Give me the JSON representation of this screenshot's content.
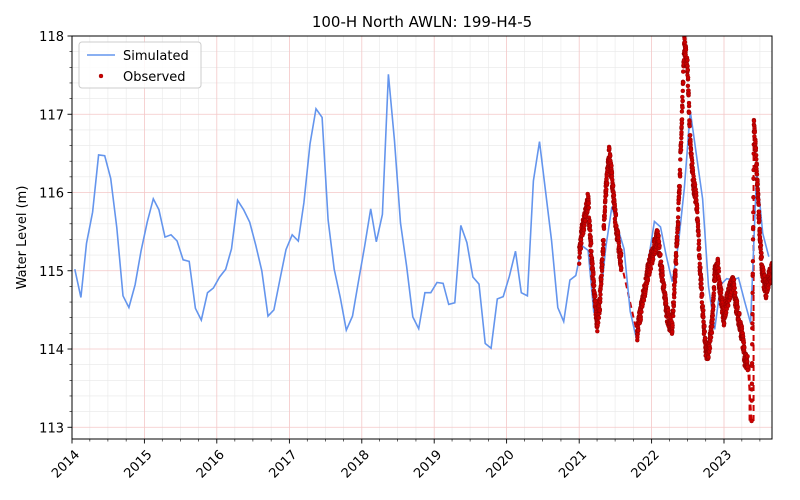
{
  "chart_data": {
    "type": "line",
    "title": "100-H North AWLN: 199-H4-5",
    "xlabel": "",
    "ylabel": "Water Level (m)",
    "xlim": [
      "2014-01-01",
      "2023-08-31"
    ],
    "ylim": [
      112.85,
      118
    ],
    "x_ticks": [
      "2014",
      "2015",
      "2016",
      "2017",
      "2018",
      "2019",
      "2020",
      "2021",
      "2022",
      "2023"
    ],
    "y_ticks": [
      113,
      114,
      115,
      116,
      117,
      118
    ],
    "grid": true,
    "legend_position": "upper left",
    "colors": {
      "simulated": "#6495ed",
      "observed": "#cc0000",
      "observed_edge": "#8b0000"
    },
    "series": [
      {
        "name": "Simulated",
        "kind": "line",
        "points": [
          [
            "2014-01-15",
            115.02
          ],
          [
            "2014-02-15",
            114.66
          ],
          [
            "2014-03-15",
            115.35
          ],
          [
            "2014-04-15",
            115.75
          ],
          [
            "2014-05-15",
            116.48
          ],
          [
            "2014-06-15",
            116.47
          ],
          [
            "2014-07-15",
            116.18
          ],
          [
            "2014-08-15",
            115.55
          ],
          [
            "2014-09-15",
            114.68
          ],
          [
            "2014-10-15",
            114.53
          ],
          [
            "2014-11-15",
            114.82
          ],
          [
            "2014-12-15",
            115.25
          ],
          [
            "2015-01-15",
            115.62
          ],
          [
            "2015-02-15",
            115.92
          ],
          [
            "2015-03-15",
            115.78
          ],
          [
            "2015-04-15",
            115.43
          ],
          [
            "2015-05-15",
            115.46
          ],
          [
            "2015-06-15",
            115.38
          ],
          [
            "2015-07-15",
            115.14
          ],
          [
            "2015-08-15",
            115.12
          ],
          [
            "2015-09-15",
            114.52
          ],
          [
            "2015-10-15",
            114.37
          ],
          [
            "2015-11-15",
            114.72
          ],
          [
            "2015-12-15",
            114.78
          ],
          [
            "2016-01-15",
            114.92
          ],
          [
            "2016-02-15",
            115.02
          ],
          [
            "2016-03-15",
            115.28
          ],
          [
            "2016-04-15",
            115.9
          ],
          [
            "2016-05-15",
            115.78
          ],
          [
            "2016-06-15",
            115.62
          ],
          [
            "2016-07-15",
            115.33
          ],
          [
            "2016-08-15",
            115.0
          ],
          [
            "2016-09-15",
            114.42
          ],
          [
            "2016-10-15",
            114.5
          ],
          [
            "2016-11-15",
            114.9
          ],
          [
            "2016-12-15",
            115.27
          ],
          [
            "2017-01-15",
            115.46
          ],
          [
            "2017-02-15",
            115.38
          ],
          [
            "2017-03-15",
            115.87
          ],
          [
            "2017-04-15",
            116.62
          ],
          [
            "2017-05-15",
            117.07
          ],
          [
            "2017-06-15",
            116.96
          ],
          [
            "2017-07-15",
            115.65
          ],
          [
            "2017-08-15",
            115.02
          ],
          [
            "2017-09-15",
            114.65
          ],
          [
            "2017-10-15",
            114.24
          ],
          [
            "2017-11-15",
            114.42
          ],
          [
            "2017-12-15",
            114.86
          ],
          [
            "2018-01-15",
            115.31
          ],
          [
            "2018-02-15",
            115.79
          ],
          [
            "2018-03-15",
            115.37
          ],
          [
            "2018-04-15",
            115.72
          ],
          [
            "2018-05-15",
            117.51
          ],
          [
            "2018-06-15",
            116.66
          ],
          [
            "2018-07-15",
            115.61
          ],
          [
            "2018-08-15",
            115.06
          ],
          [
            "2018-09-15",
            114.41
          ],
          [
            "2018-10-15",
            114.26
          ],
          [
            "2018-11-15",
            114.72
          ],
          [
            "2018-12-15",
            114.72
          ],
          [
            "2019-01-15",
            114.85
          ],
          [
            "2019-02-15",
            114.84
          ],
          [
            "2019-03-15",
            114.57
          ],
          [
            "2019-04-15",
            114.59
          ],
          [
            "2019-05-15",
            115.58
          ],
          [
            "2019-06-15",
            115.36
          ],
          [
            "2019-07-15",
            114.92
          ],
          [
            "2019-08-15",
            114.83
          ],
          [
            "2019-09-15",
            114.07
          ],
          [
            "2019-10-15",
            114.01
          ],
          [
            "2019-11-15",
            114.64
          ],
          [
            "2019-12-15",
            114.67
          ],
          [
            "2020-01-15",
            114.93
          ],
          [
            "2020-02-15",
            115.25
          ],
          [
            "2020-03-15",
            114.72
          ],
          [
            "2020-04-15",
            114.68
          ],
          [
            "2020-05-15",
            116.15
          ],
          [
            "2020-06-15",
            116.65
          ],
          [
            "2020-07-15",
            116.02
          ],
          [
            "2020-08-15",
            115.38
          ],
          [
            "2020-09-15",
            114.53
          ],
          [
            "2020-10-15",
            114.35
          ],
          [
            "2020-11-15",
            114.88
          ],
          [
            "2020-12-15",
            114.94
          ],
          [
            "2021-01-15",
            115.32
          ],
          [
            "2021-02-15",
            115.26
          ],
          [
            "2021-03-15",
            114.48
          ],
          [
            "2021-04-15",
            114.56
          ],
          [
            "2021-05-15",
            115.3
          ],
          [
            "2021-06-15",
            115.82
          ],
          [
            "2021-07-15",
            115.54
          ],
          [
            "2021-08-15",
            115.28
          ],
          [
            "2021-09-15",
            114.48
          ],
          [
            "2021-10-15",
            114.15
          ],
          [
            "2021-11-15",
            114.57
          ],
          [
            "2021-12-15",
            115.12
          ],
          [
            "2022-01-15",
            115.63
          ],
          [
            "2022-02-15",
            115.56
          ],
          [
            "2022-03-15",
            115.2
          ],
          [
            "2022-04-15",
            114.86
          ],
          [
            "2022-05-15",
            115.32
          ],
          [
            "2022-06-15",
            116.05
          ],
          [
            "2022-07-15",
            117.04
          ],
          [
            "2022-08-15",
            116.48
          ],
          [
            "2022-09-15",
            115.92
          ],
          [
            "2022-10-15",
            114.8
          ],
          [
            "2022-11-15",
            114.25
          ],
          [
            "2022-12-15",
            114.82
          ],
          [
            "2023-01-15",
            114.9
          ],
          [
            "2023-02-15",
            114.88
          ],
          [
            "2023-03-15",
            114.91
          ],
          [
            "2023-04-15",
            114.61
          ],
          [
            "2023-05-15",
            114.33
          ],
          [
            "2023-06-15",
            116.28
          ],
          [
            "2023-07-15",
            115.48
          ],
          [
            "2023-08-15",
            115.18
          ]
        ]
      },
      {
        "name": "Observed",
        "kind": "scatter",
        "segments": [
          {
            "gap_after": true,
            "points": [
              [
                "2021-01-01",
                115.2
              ],
              [
                "2021-01-15",
                115.5
              ],
              [
                "2021-02-01",
                115.7
              ],
              [
                "2021-02-15",
                115.9
              ],
              [
                "2021-03-01",
                115.3
              ],
              [
                "2021-03-15",
                114.8
              ],
              [
                "2021-04-01",
                114.3
              ],
              [
                "2021-04-15",
                114.6
              ],
              [
                "2021-05-01",
                115.3
              ],
              [
                "2021-05-15",
                116.0
              ],
              [
                "2021-06-01",
                116.5
              ],
              [
                "2021-06-15",
                116.2
              ],
              [
                "2021-07-01",
                115.7
              ],
              [
                "2021-07-15",
                115.4
              ],
              [
                "2021-08-01",
                115.1
              ]
            ]
          },
          {
            "gap_after": true,
            "points": [
              [
                "2021-10-20",
                114.2
              ],
              [
                "2021-11-15",
                114.6
              ],
              [
                "2021-12-15",
                115.0
              ],
              [
                "2022-01-15",
                115.3
              ],
              [
                "2022-02-01",
                115.45
              ],
              [
                "2022-02-15",
                115.1
              ],
              [
                "2022-03-01",
                114.85
              ],
              [
                "2022-03-15",
                114.5
              ],
              [
                "2022-04-01",
                114.35
              ],
              [
                "2022-04-15",
                114.3
              ],
              [
                "2022-05-01",
                115.0
              ],
              [
                "2022-05-15",
                115.7
              ],
              [
                "2022-06-01",
                116.8
              ],
              [
                "2022-06-15",
                117.9
              ],
              [
                "2022-07-01",
                117.6
              ],
              [
                "2022-07-15",
                116.6
              ],
              [
                "2022-08-01",
                116.1
              ],
              [
                "2022-08-15",
                115.9
              ],
              [
                "2022-09-01",
                115.1
              ],
              [
                "2022-09-15",
                114.5
              ],
              [
                "2022-10-01",
                114.0
              ],
              [
                "2022-10-15",
                113.95
              ],
              [
                "2022-11-01",
                114.3
              ],
              [
                "2022-11-15",
                114.95
              ],
              [
                "2022-12-01",
                115.05
              ],
              [
                "2022-12-15",
                114.7
              ],
              [
                "2023-01-01",
                114.4
              ],
              [
                "2023-01-15",
                114.6
              ],
              [
                "2023-02-01",
                114.75
              ],
              [
                "2023-02-15",
                114.9
              ],
              [
                "2023-03-01",
                114.6
              ],
              [
                "2023-03-15",
                114.4
              ],
              [
                "2023-04-01",
                114.2
              ],
              [
                "2023-04-15",
                113.9
              ],
              [
                "2023-05-01",
                113.8
              ]
            ]
          },
          {
            "gap_after": false,
            "points": [
              [
                "2023-05-20",
                113.08
              ],
              [
                "2023-06-01",
                116.9
              ],
              [
                "2023-06-15",
                116.3
              ],
              [
                "2023-07-01",
                115.4
              ],
              [
                "2023-07-15",
                114.95
              ],
              [
                "2023-08-01",
                114.75
              ],
              [
                "2023-08-15",
                114.9
              ],
              [
                "2023-08-31",
                115.0
              ]
            ]
          }
        ]
      }
    ]
  }
}
